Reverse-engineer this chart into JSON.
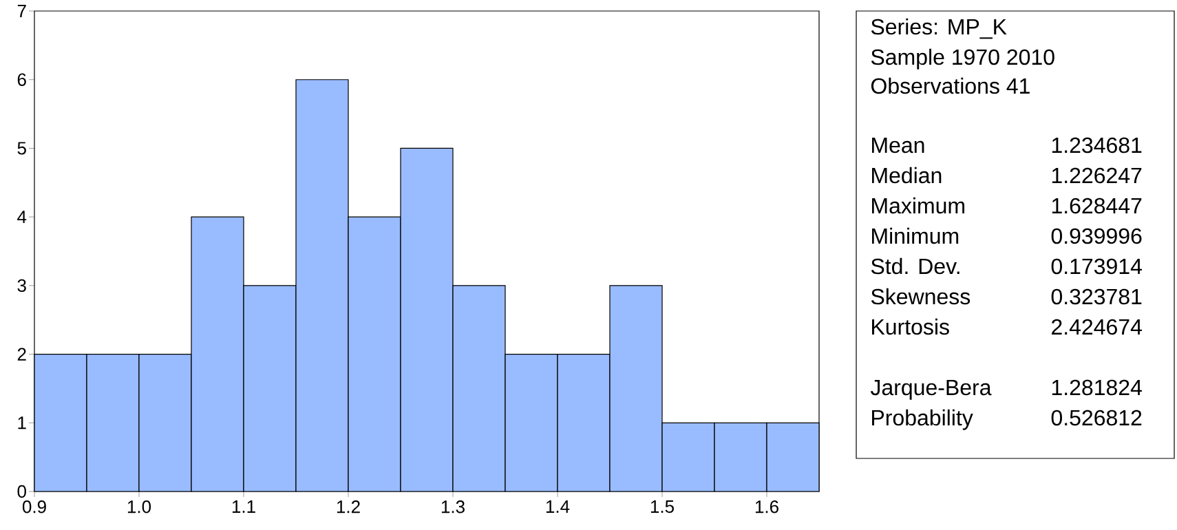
{
  "chart_data": {
    "type": "histogram",
    "color": "#99bbff",
    "bins": [
      0.9,
      0.95,
      1.0,
      1.05,
      1.1,
      1.15,
      1.2,
      1.25,
      1.3,
      1.35,
      1.4,
      1.45,
      1.5,
      1.55,
      1.6,
      1.65
    ],
    "values": [
      2,
      2,
      2,
      4,
      3,
      6,
      4,
      5,
      3,
      2,
      2,
      3,
      1,
      1,
      1
    ],
    "xlim": [
      0.9,
      1.65
    ],
    "ylim": [
      0,
      7
    ],
    "xticks": [
      0.9,
      {
        "value": 1.0,
        "label": "1.0"
      },
      1.1,
      1.2,
      1.3,
      1.4,
      1.5,
      1.6
    ],
    "yticks": [
      0,
      1,
      2,
      3,
      4,
      5,
      6,
      7
    ],
    "annotations": [
      "Series: MP_K",
      "Sample 1970 2010",
      "Observations 41",
      "Mean",
      "1.234681",
      "Median",
      "1.226247",
      "Maximum",
      "1.628447",
      "Minimum",
      "0.939996",
      "Std. Dev.",
      "0.173914",
      "Skewness",
      "0.323781",
      "Kurtosis",
      "2.424674",
      "Jarque-Bera",
      "1.281824",
      "Probability",
      "0.526812"
    ]
  }
}
